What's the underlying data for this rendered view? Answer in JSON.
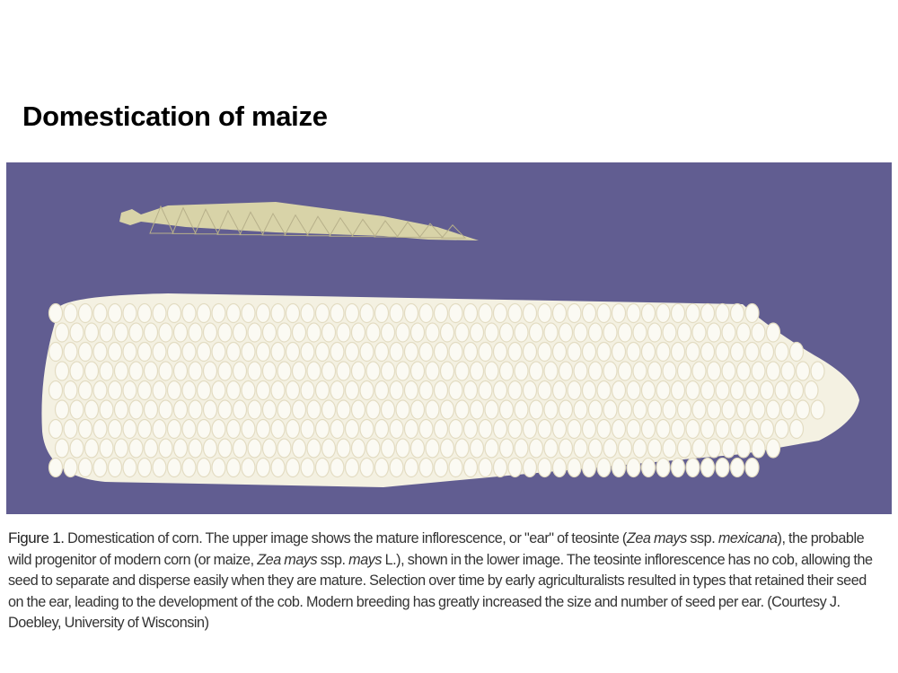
{
  "slide": {
    "title": "Domestication of maize"
  },
  "figure": {
    "background_color": "#615d91",
    "teosinte_color": "#d8d3a8",
    "maize_color": "#f4f1e2",
    "upper_image": "teosinte ear",
    "lower_image": "maize ear"
  },
  "caption": {
    "label": "Figure 1.",
    "parts": [
      " Domestication of corn. The upper image shows the mature inflorescence, or \"ear\" of teosinte (",
      "Zea mays",
      " ssp. ",
      "mexicana",
      "), the probable wild progenitor of modern corn (or maize, ",
      "Zea mays",
      " ssp. ",
      "mays",
      " L.), shown in the lower image. The teosinte inflorescence has no cob, allowing the seed to separate and disperse easily when they are mature. Selection over time by early agriculturalists resulted in types that retained their seed on the ear, leading to the development of the cob. Modern breeding has greatly increased the size and number of seed per ear. (Courtesy J. Doebley, University of Wisconsin)"
    ]
  }
}
